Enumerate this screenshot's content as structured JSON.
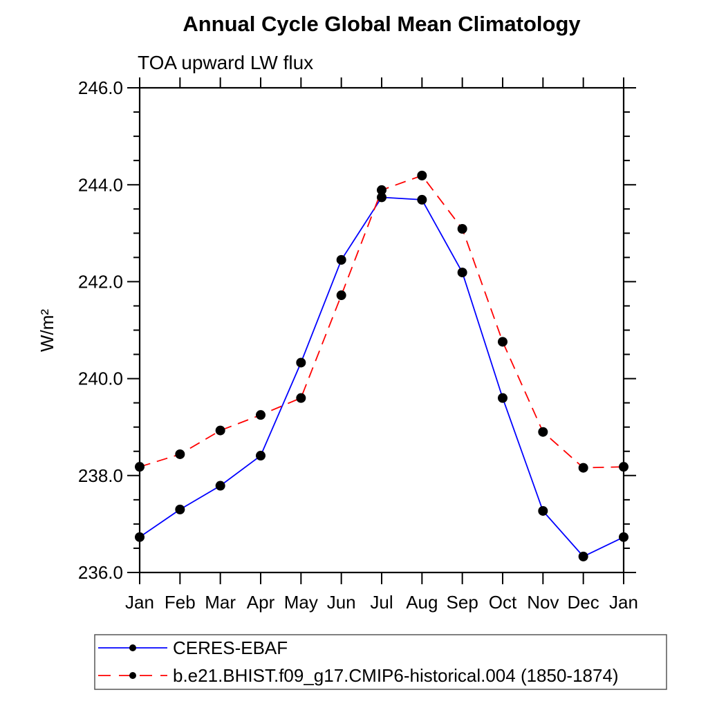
{
  "chart": {
    "title": "Annual Cycle Global Mean Climatology",
    "subtitle": "TOA upward LW flux",
    "ylabel": "W/m²"
  },
  "chart_data": {
    "type": "line",
    "title": "Annual Cycle Global Mean Climatology",
    "subtitle": "TOA upward LW flux",
    "xlabel": "",
    "ylabel": "W/m²",
    "ylim": [
      236.0,
      246.0
    ],
    "y_major_ticks": [
      236.0,
      238.0,
      240.0,
      242.0,
      244.0,
      246.0
    ],
    "y_minor_step": 0.5,
    "grid": false,
    "legend_position": "bottom-left",
    "categories": [
      "Jan",
      "Feb",
      "Mar",
      "Apr",
      "May",
      "Jun",
      "Jul",
      "Aug",
      "Sep",
      "Oct",
      "Nov",
      "Dec",
      "Jan"
    ],
    "series": [
      {
        "name": "CERES-EBAF",
        "color": "#0000ff",
        "line_style": "solid",
        "marker": "filled-circle",
        "marker_color": "#000000",
        "values": [
          236.73,
          237.3,
          237.79,
          238.41,
          240.33,
          242.45,
          243.74,
          243.69,
          242.19,
          239.6,
          237.27,
          236.33,
          236.73
        ]
      },
      {
        "name": "b.e21.BHIST.f09_g17.CMIP6-historical.004 (1850-1874)",
        "color": "#ff0000",
        "line_style": "dashed",
        "marker": "filled-circle",
        "marker_color": "#000000",
        "values": [
          238.18,
          238.44,
          238.93,
          239.25,
          239.6,
          241.72,
          243.89,
          244.19,
          243.09,
          240.76,
          238.9,
          238.16,
          238.18
        ]
      }
    ]
  }
}
